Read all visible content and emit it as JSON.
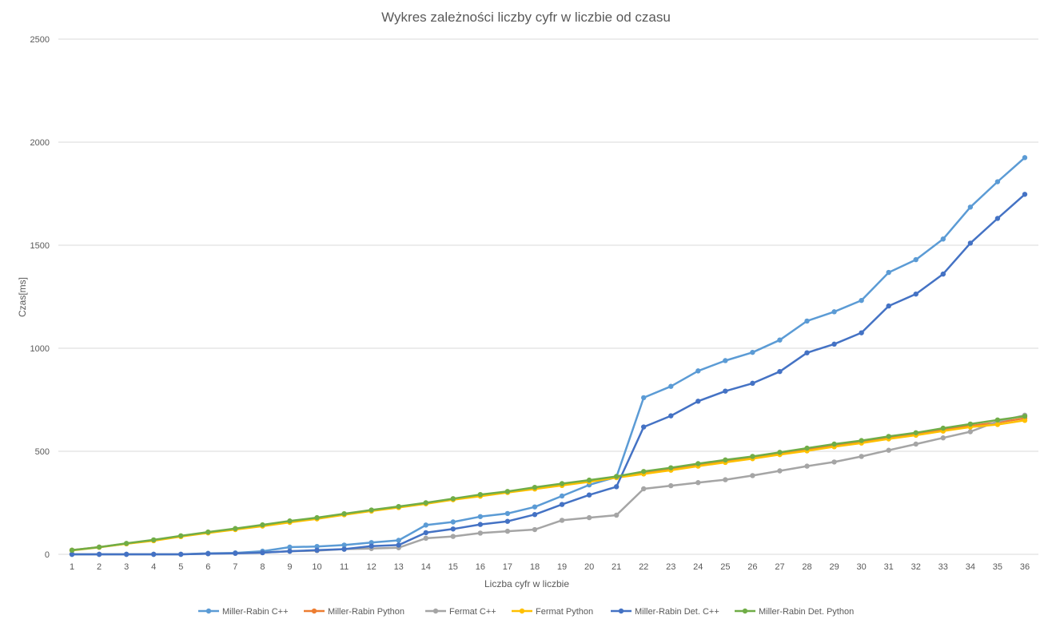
{
  "chart_data": {
    "type": "line",
    "title": "Wykres zależności liczby cyfr w liczbie od czasu",
    "xlabel": "Liczba cyfr w liczbie",
    "ylabel": "Czas[ms]",
    "ylim": [
      0,
      2500
    ],
    "yticks": [
      "0",
      "500",
      "1000",
      "1500",
      "2000",
      "2500"
    ],
    "categories": [
      "1",
      "2",
      "3",
      "4",
      "5",
      "6",
      "7",
      "8",
      "9",
      "10",
      "11",
      "12",
      "13",
      "14",
      "15",
      "16",
      "17",
      "18",
      "19",
      "20",
      "21",
      "22",
      "23",
      "24",
      "25",
      "26",
      "27",
      "28",
      "29",
      "30",
      "31",
      "32",
      "33",
      "34",
      "35",
      "36"
    ],
    "grid": true,
    "legend_position": "bottom",
    "series": [
      {
        "name": "Miller-Rabin C++",
        "color": "#5b9bd5",
        "values": [
          0,
          0,
          0,
          0,
          0,
          5,
          7,
          15,
          35,
          38,
          45,
          57,
          68,
          142,
          157,
          183,
          198,
          230,
          283,
          337,
          375,
          760,
          815,
          890,
          940,
          980,
          1040,
          1132,
          1177,
          1232,
          1368,
          1430,
          1530,
          1685,
          1808,
          1925
        ]
      },
      {
        "name": "Miller-Rabin Python",
        "color": "#ed7d31",
        "values": [
          20,
          35,
          52,
          68,
          88,
          107,
          122,
          140,
          158,
          175,
          195,
          213,
          230,
          248,
          268,
          285,
          302,
          320,
          337,
          355,
          375,
          395,
          412,
          432,
          450,
          468,
          488,
          507,
          527,
          545,
          565,
          583,
          605,
          623,
          640,
          660
        ]
      },
      {
        "name": "Fermat C++",
        "color": "#a5a5a5",
        "values": [
          0,
          0,
          0,
          0,
          0,
          3,
          5,
          8,
          15,
          18,
          25,
          28,
          32,
          78,
          87,
          103,
          112,
          120,
          165,
          178,
          190,
          318,
          333,
          348,
          362,
          382,
          405,
          428,
          448,
          475,
          505,
          535,
          565,
          595,
          645,
          675
        ]
      },
      {
        "name": "Fermat Python",
        "color": "#ffc000",
        "values": [
          19,
          34,
          51,
          66,
          86,
          104,
          120,
          137,
          155,
          172,
          192,
          210,
          227,
          245,
          265,
          282,
          300,
          317,
          334,
          352,
          372,
          390,
          408,
          428,
          446,
          464,
          484,
          502,
          522,
          540,
          560,
          578,
          598,
          618,
          630,
          650
        ]
      },
      {
        "name": "Miller-Rabin Det. C++",
        "color": "#4472c4",
        "values": [
          0,
          0,
          0,
          0,
          0,
          3,
          5,
          8,
          15,
          20,
          25,
          40,
          45,
          105,
          123,
          145,
          160,
          193,
          242,
          288,
          328,
          618,
          672,
          743,
          792,
          830,
          887,
          978,
          1020,
          1075,
          1205,
          1263,
          1360,
          1510,
          1630,
          1747
        ]
      },
      {
        "name": "Miller-Rabin Det. Python",
        "color": "#70ad47",
        "values": [
          20,
          35,
          53,
          70,
          90,
          108,
          125,
          143,
          162,
          178,
          197,
          215,
          232,
          250,
          270,
          290,
          305,
          325,
          343,
          360,
          378,
          402,
          420,
          440,
          458,
          475,
          495,
          515,
          535,
          552,
          572,
          590,
          612,
          632,
          652,
          670
        ]
      }
    ]
  }
}
